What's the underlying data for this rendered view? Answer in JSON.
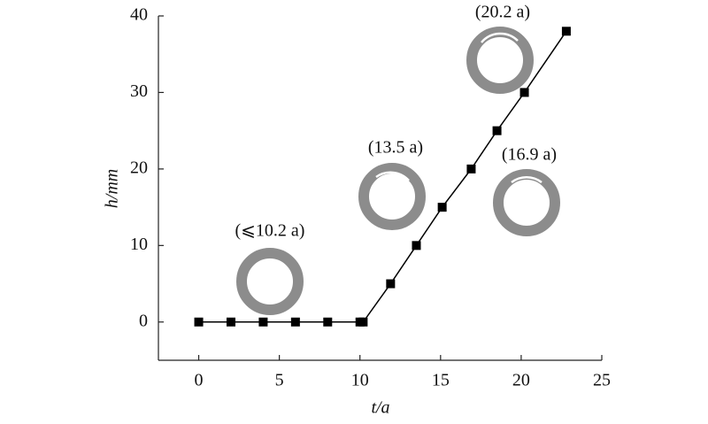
{
  "chart_data": {
    "type": "line",
    "x_label": "t/a",
    "y_label": "h/mm",
    "annotations": [
      "(⩽10.2 a)",
      "(13.5 a)",
      "(16.9 a)",
      "(20.2 a)"
    ],
    "x": [
      0,
      2,
      4,
      6,
      8,
      10,
      10.2,
      11.9,
      13.5,
      15.1,
      16.9,
      18.5,
      20.2,
      22.8
    ],
    "series": [
      {
        "color": "#000000",
        "values": [
          0,
          0,
          0,
          0,
          0,
          0,
          0,
          5,
          10,
          15,
          20,
          25,
          30,
          38
        ]
      }
    ],
    "xlim": [
      -2.5,
      25
    ],
    "ylim": [
      -5,
      40
    ],
    "xticks": [
      0,
      5,
      10,
      15,
      20,
      25
    ],
    "yticks": [
      0,
      10,
      20,
      30,
      40
    ],
    "grid": false
  }
}
